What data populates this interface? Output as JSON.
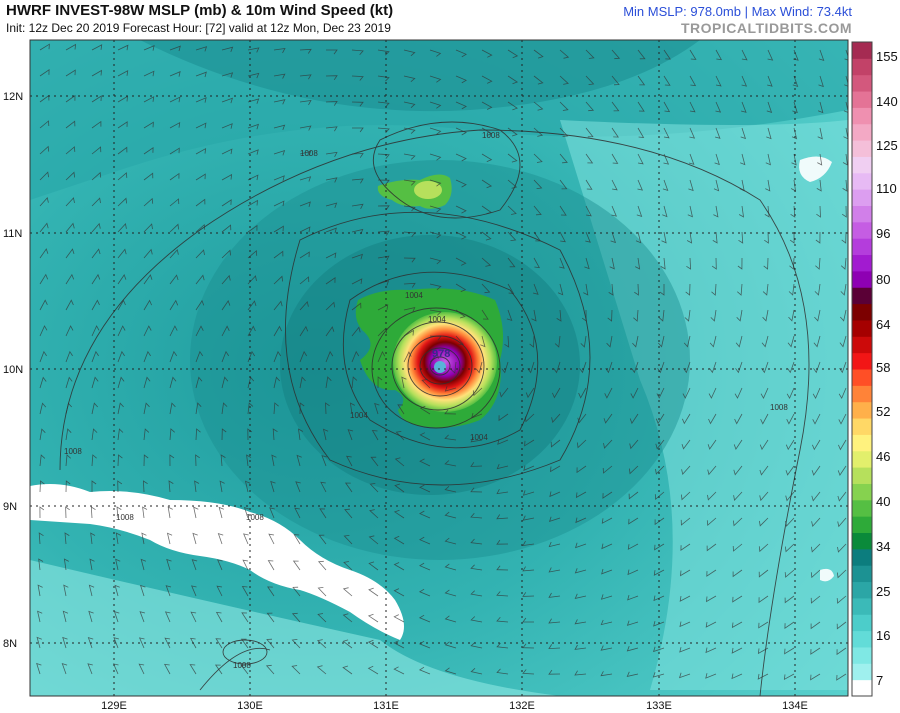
{
  "header": {
    "title": "HWRF INVEST-98W MSLP (mb) & 10m Wind Speed (kt)",
    "subtitle": "Init: 12z Dec 20 2019   Forecast Hour: [72]   valid at 12z Mon, Dec 23 2019",
    "stats": "Min MSLP: 978.0mb | Max Wind: 73.4kt",
    "brand": "TROPICALTIDBITS.COM"
  },
  "map": {
    "lat_labels": [
      "12N",
      "11N",
      "10N",
      "9N",
      "8N"
    ],
    "lon_labels": [
      "129E",
      "130E",
      "131E",
      "132E",
      "133E",
      "134E"
    ],
    "center_pressure_label": "978",
    "contour_labels": [
      "1008",
      "1004",
      "1004",
      "1004",
      "1004",
      "1008",
      "1008",
      "1008",
      "1008",
      "1008",
      "1008"
    ]
  },
  "colorbar": {
    "ticks": [
      "155",
      "140",
      "125",
      "110",
      "96",
      "80",
      "64",
      "58",
      "52",
      "46",
      "40",
      "34",
      "25",
      "16",
      "7"
    ],
    "colors": [
      "#ffffff",
      "#9ff0ee",
      "#7fe8e4",
      "#62dcd8",
      "#4ccdca",
      "#3bbab8",
      "#2ba6a6",
      "#1c9293",
      "#0c7d7e",
      "#0a8a3a",
      "#2eaa39",
      "#55bf43",
      "#86d24f",
      "#b6e05c",
      "#e2ef6c",
      "#fff27e",
      "#ffd866",
      "#ffb04a",
      "#ff8338",
      "#ff4f26",
      "#f21616",
      "#cc0a0a",
      "#a50000",
      "#7c0000",
      "#5a0036",
      "#8e00b3",
      "#a21bd0",
      "#b43ddc",
      "#c55de3",
      "#d17fe9",
      "#dc9ef0",
      "#e7baf4",
      "#f0cff2",
      "#f4bfd9",
      "#f3a9c5",
      "#ef90b0",
      "#e47396",
      "#d3587d",
      "#c24268",
      "#a52b52"
    ]
  }
}
